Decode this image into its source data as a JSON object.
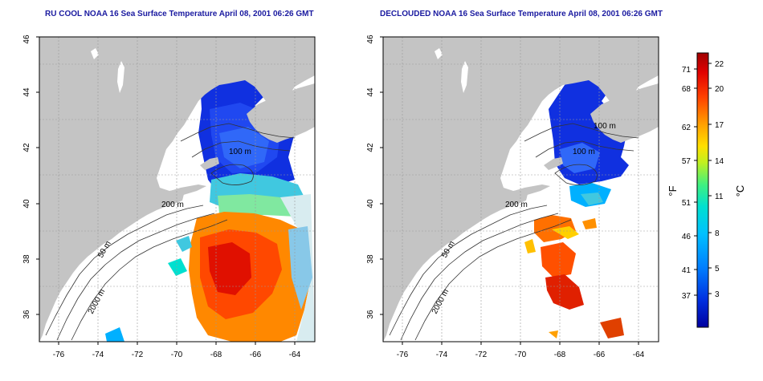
{
  "panels": [
    {
      "id": "left",
      "title": "RU COOL NOAA 16 Sea Surface Temperature April 08, 2001 06:26 GMT",
      "contours": [
        "100 m",
        "200 m",
        "50 m",
        "2000 m"
      ]
    },
    {
      "id": "right",
      "title": "DECLOUDED NOAA 16 Sea Surface Temperature April 08, 2001 06:26 GMT",
      "contours": [
        "100 m",
        "100 m",
        "200 m",
        "50 m",
        "2000 m"
      ]
    }
  ],
  "axes": {
    "lon_ticks": [
      "-76",
      "-74",
      "-72",
      "-70",
      "-68",
      "-66",
      "-64"
    ],
    "lat_ticks": [
      "36",
      "38",
      "40",
      "42",
      "44",
      "46"
    ],
    "lon_range": [
      -77,
      -63
    ],
    "lat_range": [
      35,
      46
    ]
  },
  "colorbar": {
    "label_f": "°F",
    "label_c": "°C",
    "f_ticks": [
      "71",
      "68",
      "62",
      "57",
      "51",
      "46",
      "41",
      "37"
    ],
    "c_ticks": [
      "22",
      "20",
      "17",
      "14",
      "11",
      "8",
      "5",
      "3"
    ],
    "colors": [
      "#0000a0",
      "#0020e0",
      "#0070ff",
      "#00b0ff",
      "#00e0e0",
      "#40f0a0",
      "#a0f040",
      "#f0e000",
      "#ffa000",
      "#ff5000",
      "#e00000",
      "#a00000"
    ]
  },
  "colors": {
    "land": "#c4c4c4",
    "water": "#ffffff",
    "title": "#1a1aa0"
  }
}
